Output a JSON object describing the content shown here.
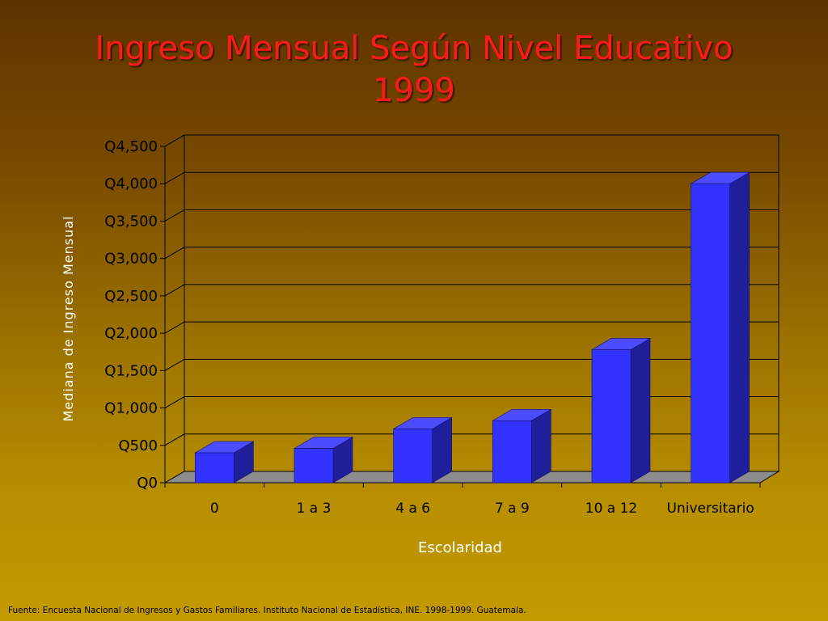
{
  "title": {
    "line1": "Ingreso  Mensual Según Nivel Educativo",
    "line2": "1999"
  },
  "source": "Fuente: Encuesta Nacional de Ingresos y Gastos Familiares. Instituto Nacional de Estadística, INE. 1998-1999.  Guatemala.",
  "colors": {
    "bar_front": "#3333ff",
    "bar_top": "#4d4dff",
    "bar_side": "#1f1f99",
    "floor": "#8c8c8c",
    "title": "#ff1a1a"
  },
  "chart_data": {
    "type": "bar",
    "title": "Ingreso  Mensual Según Nivel Educativo 1999",
    "xlabel": "Escolaridad",
    "ylabel": "Mediana de Ingreso Mensual",
    "categories": [
      "0",
      "1 a 3",
      "4 a 6",
      "7 a 9",
      "10 a 12",
      "Universitario"
    ],
    "values": [
      400,
      460,
      720,
      830,
      1780,
      4000
    ],
    "ylim": [
      0,
      4500
    ],
    "yticks": [
      0,
      500,
      1000,
      1500,
      2000,
      2500,
      3000,
      3500,
      4000,
      4500
    ],
    "ytick_labels": [
      "Q0",
      "Q500",
      "Q1,000",
      "Q1,500",
      "Q2,000",
      "Q2,500",
      "Q3,000",
      "Q3,500",
      "Q4,000",
      "Q4,500"
    ],
    "grid": true,
    "legend": "none",
    "style": "3d-column"
  }
}
